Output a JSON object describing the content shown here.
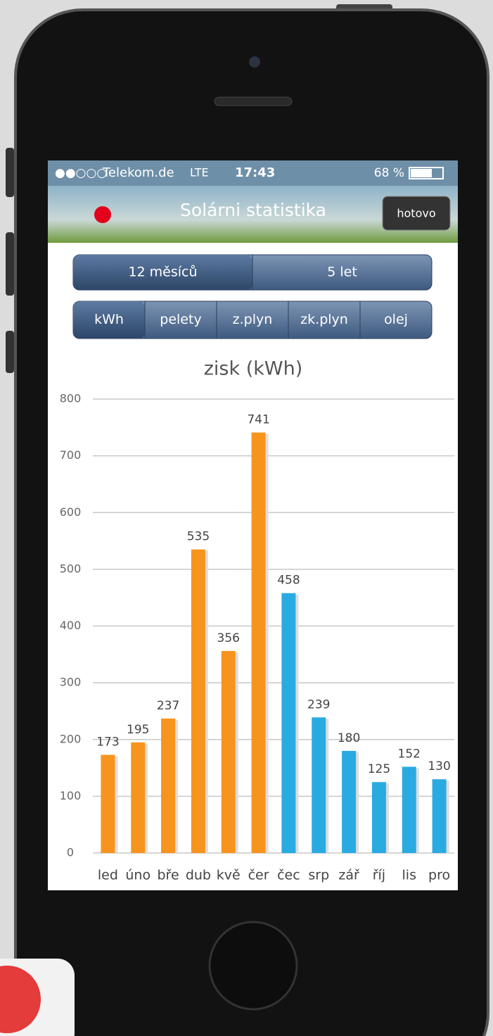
{
  "status_bar": {
    "carrier": "Telekom.de",
    "network": "LTE",
    "time": "17:43",
    "battery": "68 %"
  },
  "header": {
    "title": "Solárni statistika",
    "button": "hotovo"
  },
  "period_tabs": [
    "12 měsíců",
    "5 let"
  ],
  "unit_tabs": [
    "kWh",
    "pelety",
    "z.plyn",
    "zk.plyn",
    "olej"
  ],
  "chart_data": {
    "type": "bar",
    "title": "zisk (kWh)",
    "categories": [
      "led",
      "úno",
      "bře",
      "dub",
      "kvě",
      "čer",
      "čec",
      "srp",
      "zář",
      "říj",
      "lis",
      "pro"
    ],
    "values": [
      173,
      195,
      237,
      535,
      356,
      741,
      458,
      239,
      180,
      125,
      152,
      130
    ],
    "colors": [
      "#f7941d",
      "#f7941d",
      "#f7941d",
      "#f7941d",
      "#f7941d",
      "#f7941d",
      "#29abe2",
      "#29abe2",
      "#29abe2",
      "#29abe2",
      "#29abe2",
      "#29abe2"
    ],
    "ylim": [
      0,
      800
    ],
    "yticks": [
      0,
      100,
      200,
      300,
      400,
      500,
      600,
      700,
      800
    ],
    "grid": true
  }
}
